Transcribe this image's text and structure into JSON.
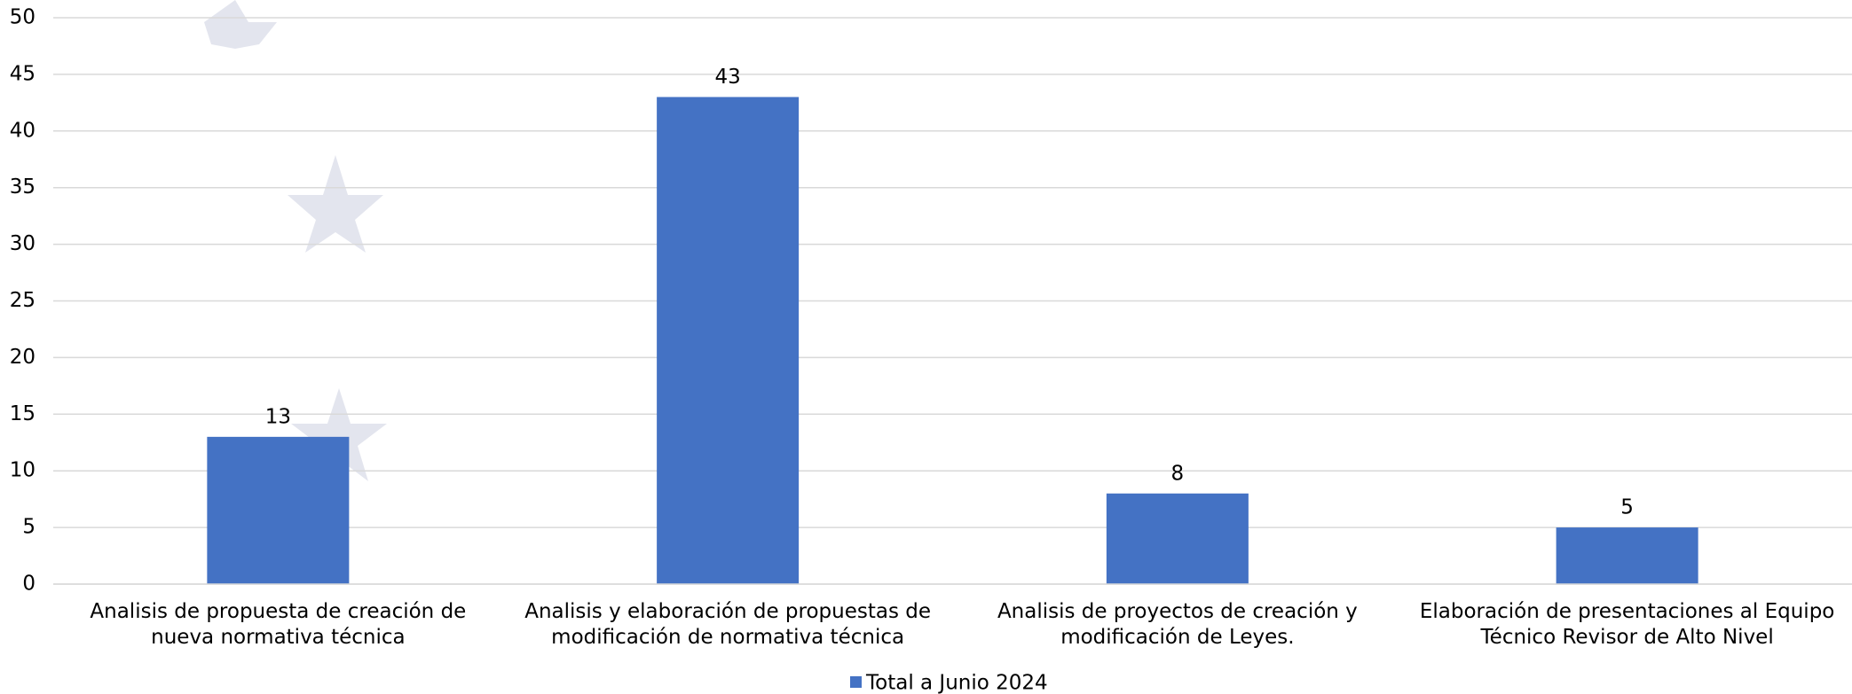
{
  "chart_data": {
    "type": "bar",
    "categories": [
      "Analisis de propuesta de creación de nueva normativa técnica",
      "Analisis y elaboración de propuestas de modificación de normativa técnica",
      "Analisis de proyectos de creación y modificación de Leyes.",
      "Elaboración de presentaciones al Equipo Técnico Revisor de Alto Nivel"
    ],
    "series": [
      {
        "name": "Total a Junio 2024",
        "color": "#4472c4",
        "values": [
          13,
          43,
          8,
          5
        ]
      }
    ],
    "ylim": [
      0,
      50
    ],
    "yticks": [
      0,
      5,
      10,
      15,
      20,
      25,
      30,
      35,
      40,
      45,
      50
    ],
    "grid": true,
    "legend": "bottom"
  }
}
